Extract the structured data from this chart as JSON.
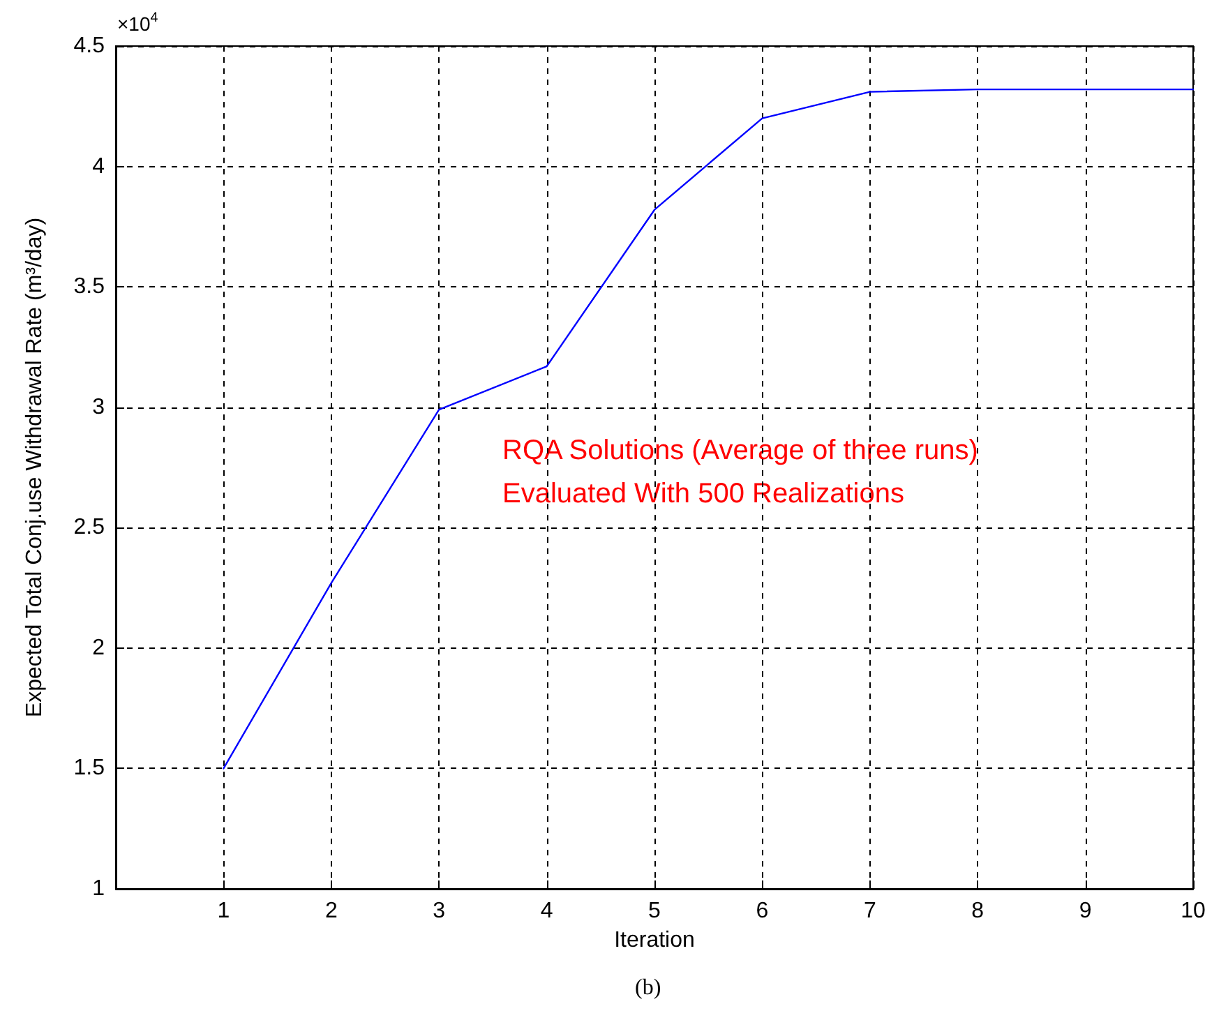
{
  "chart_data": {
    "type": "line",
    "xlabel": "Iteration",
    "ylabel": "Expected Total Conj.use Withdrawal Rate (m³/day)",
    "x": [
      1,
      2,
      3,
      4,
      5,
      6,
      7,
      8,
      9,
      10
    ],
    "series": [
      {
        "color": "#0000ff",
        "values": [
          1.5,
          2.27,
          2.99,
          3.17,
          3.82,
          4.2,
          4.31,
          4.32,
          4.32,
          4.32
        ]
      }
    ],
    "xlim": [
      0,
      10
    ],
    "xticks": [
      1,
      2,
      3,
      4,
      5,
      6,
      7,
      8,
      9,
      10
    ],
    "ylim": [
      1,
      4.5
    ],
    "yticks": [
      1,
      1.5,
      2,
      2.5,
      3,
      3.5,
      4,
      4.5
    ],
    "grid": true,
    "marker": "none",
    "line_style": "solid",
    "annotations": [
      "×10$^{4}$",
      "RQA Solutions (Average of three runs)",
      "Evaluated With 500 Realizations",
      "(b)"
    ]
  }
}
